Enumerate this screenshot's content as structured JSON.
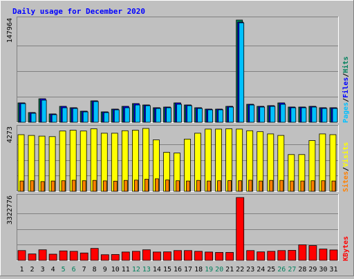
{
  "chart_data": {
    "type": "bar",
    "title": "Daily usage for December 2020",
    "categories": [
      "1",
      "2",
      "3",
      "4",
      "5",
      "6",
      "7",
      "8",
      "9",
      "10",
      "11",
      "12",
      "13",
      "14",
      "15",
      "16",
      "17",
      "18",
      "19",
      "20",
      "21",
      "22",
      "23",
      "24",
      "25",
      "26",
      "27",
      "28",
      "29",
      "30",
      "31"
    ],
    "weekend_days": [
      "5",
      "6",
      "12",
      "13",
      "19",
      "20",
      "26",
      "27"
    ],
    "panels": [
      {
        "id": "hits",
        "max_label": "147964",
        "ymax": 147964,
        "legend": [
          "Pages",
          "Files",
          "Hits"
        ],
        "series": [
          {
            "name": "Hits",
            "color": "#00805c",
            "values": [
              28000,
              14000,
              34000,
              12000,
              23000,
              21000,
              16000,
              31000,
              15000,
              19000,
              23000,
              27000,
              25000,
              21000,
              22000,
              28000,
              25000,
              21000,
              19000,
              19000,
              23000,
              147964,
              26000,
              23000,
              24000,
              28000,
              22000,
              22000,
              23000,
              21000,
              21000
            ]
          },
          {
            "name": "Files",
            "color": "#0000ff",
            "values": [
              28000,
              14000,
              34000,
              12000,
              23000,
              21000,
              16000,
              31000,
              15000,
              19000,
              23000,
              27000,
              25000,
              21000,
              22000,
              28000,
              25000,
              21000,
              19000,
              19000,
              23000,
              145000,
              26000,
              23000,
              24000,
              28000,
              22000,
              22000,
              23000,
              21000,
              21000
            ]
          },
          {
            "name": "Pages",
            "color": "#00c0ff",
            "values": [
              27000,
              13000,
              32000,
              11000,
              21000,
              20000,
              15000,
              30000,
              14000,
              18000,
              21000,
              25000,
              24000,
              20000,
              21000,
              26000,
              24000,
              20000,
              18000,
              18000,
              22000,
              144000,
              25000,
              22000,
              23000,
              26000,
              21000,
              21000,
              22000,
              20000,
              20000
            ]
          }
        ]
      },
      {
        "id": "visits",
        "max_label": "4273",
        "ymax": 4273,
        "legend": [
          "Sites",
          "Visits"
        ],
        "series": [
          {
            "name": "Visits",
            "color": "#ffff00",
            "values": [
              3850,
              3800,
              3750,
              3720,
              4100,
              4150,
              4100,
              4250,
              3950,
              3950,
              4120,
              4150,
              4273,
              3500,
              2650,
              2600,
              3550,
              3950,
              4230,
              4230,
              4250,
              4230,
              4120,
              4050,
              3900,
              3800,
              2500,
              2500,
              3450,
              3900,
              3850
            ]
          },
          {
            "name": "Sites",
            "color": "#ff8000",
            "values": [
              700,
              720,
              660,
              700,
              720,
              750,
              720,
              740,
              710,
              690,
              740,
              760,
              820,
              850,
              770,
              720,
              700,
              740,
              700,
              720,
              730,
              720,
              750,
              700,
              740,
              740,
              700,
              700,
              720,
              720,
              700
            ]
          }
        ]
      },
      {
        "id": "kbytes",
        "max_label": "3322776",
        "ymax": 3322776,
        "legend": [
          "KBytes"
        ],
        "series": [
          {
            "name": "KBytes",
            "color": "#ff0000",
            "values": [
              520000,
              340000,
              560000,
              330000,
              500000,
              480000,
              390000,
              630000,
              300000,
              310000,
              440000,
              480000,
              560000,
              440000,
              450000,
              520000,
              520000,
              480000,
              440000,
              420000,
              420000,
              3322776,
              520000,
              450000,
              480000,
              520000,
              530000,
              820000,
              780000,
              600000,
              550000
            ]
          }
        ]
      }
    ]
  }
}
